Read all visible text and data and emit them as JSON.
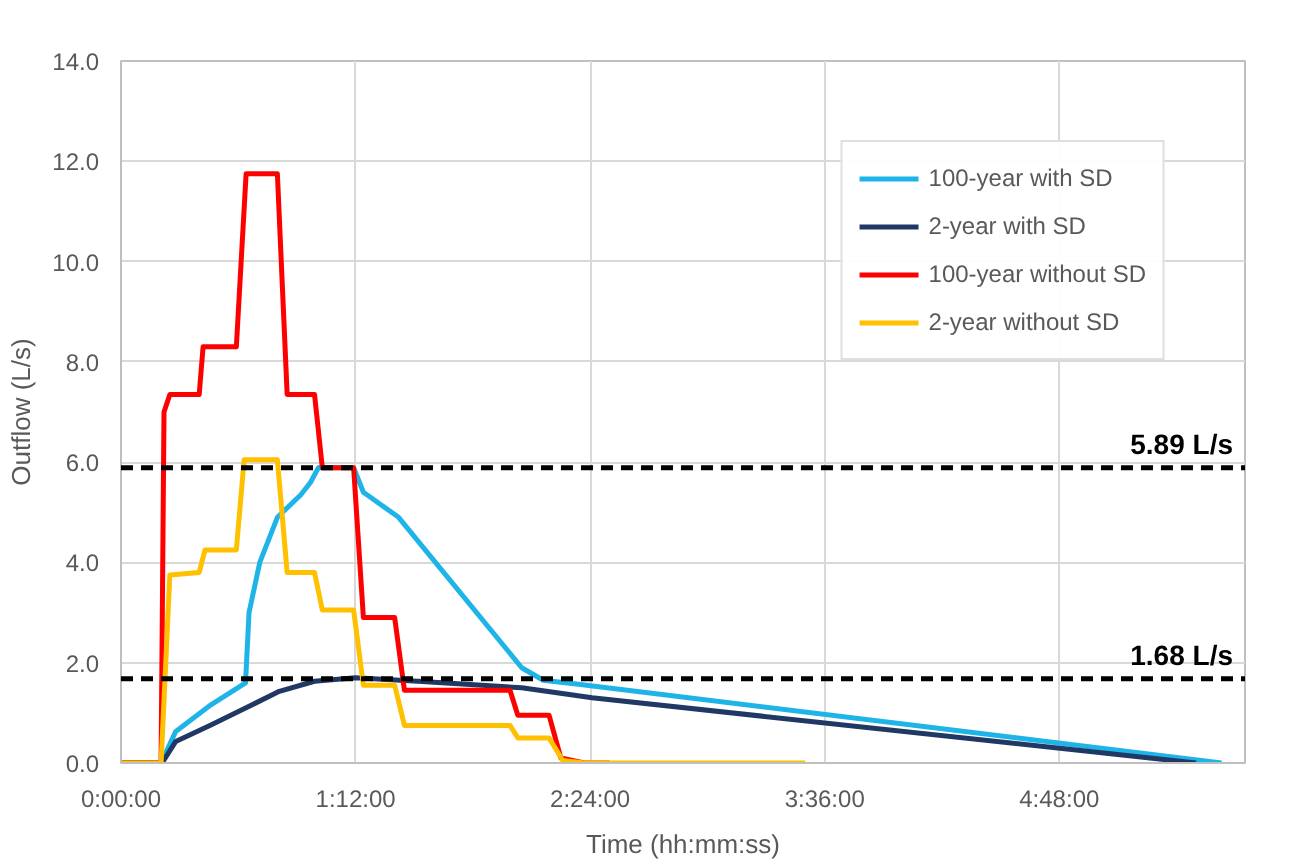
{
  "chart_data": {
    "type": "line",
    "xlabel": "Time (hh:mm:ss)",
    "ylabel": "Outflow (L/s)",
    "xlim": [
      0,
      5.75
    ],
    "xticks": [
      {
        "value": 0,
        "label": "0:00:00"
      },
      {
        "value": 1.2,
        "label": "1:12:00"
      },
      {
        "value": 2.4,
        "label": "2:24:00"
      },
      {
        "value": 3.6,
        "label": "3:36:00"
      },
      {
        "value": 4.8,
        "label": "4:48:00"
      }
    ],
    "ylim": [
      0,
      14
    ],
    "yticks": [
      {
        "value": 0,
        "label": "0.0"
      },
      {
        "value": 2,
        "label": "2.0"
      },
      {
        "value": 4,
        "label": "4.0"
      },
      {
        "value": 6,
        "label": "6.0"
      },
      {
        "value": 8,
        "label": "8.0"
      },
      {
        "value": 10,
        "label": "10.0"
      },
      {
        "value": 12,
        "label": "12.0"
      },
      {
        "value": 14,
        "label": "14.0"
      }
    ],
    "grid": true,
    "legend": "top right",
    "marker": "none",
    "line_style": "solid",
    "ref_lines": [
      {
        "axis": "y",
        "value": 5.89,
        "label": "5.89 L/s",
        "color": "#000000",
        "line_style": "dashed"
      },
      {
        "axis": "y",
        "value": 1.68,
        "label": "1.68 L/s",
        "color": "#000000",
        "line_style": "dashed"
      }
    ],
    "series": [
      {
        "name": "100-year with SD",
        "color": "#1fb4e8",
        "x": [
          0,
          0.205,
          0.28,
          0.46,
          0.637,
          0.655,
          0.71,
          0.8,
          0.92,
          0.97,
          1.01,
          1.19,
          1.24,
          1.42,
          2.05,
          2.16,
          2.34,
          5.63
        ],
        "values": [
          0,
          0,
          0.63,
          1.16,
          1.6,
          3.0,
          4.0,
          4.9,
          5.35,
          5.6,
          5.89,
          5.89,
          5.4,
          4.9,
          1.9,
          1.65,
          1.57,
          0
        ]
      },
      {
        "name": "2-year with SD",
        "color": "#1f3864",
        "x": [
          0,
          0.21,
          0.28,
          0.46,
          0.64,
          0.81,
          0.99,
          1.2,
          1.52,
          2.05,
          2.41,
          5.5
        ],
        "values": [
          0,
          0,
          0.43,
          0.76,
          1.1,
          1.43,
          1.63,
          1.7,
          1.63,
          1.5,
          1.3,
          0
        ]
      },
      {
        "name": "100-year without SD",
        "color": "#ff0000",
        "x": [
          0,
          0.205,
          0.22,
          0.25,
          0.4,
          0.42,
          0.59,
          0.64,
          0.8,
          0.85,
          0.99,
          1.03,
          1.19,
          1.24,
          1.4,
          1.45,
          1.99,
          2.03,
          2.19,
          2.25,
          2.37,
          2.5
        ],
        "values": [
          0,
          0,
          7.0,
          7.35,
          7.35,
          8.3,
          8.3,
          11.75,
          11.75,
          7.35,
          7.35,
          5.89,
          5.89,
          2.9,
          2.9,
          1.45,
          1.45,
          0.95,
          0.95,
          0.1,
          0,
          0
        ]
      },
      {
        "name": "2-year without SD",
        "color": "#ffc000",
        "x": [
          0,
          0.205,
          0.25,
          0.4,
          0.43,
          0.59,
          0.63,
          0.8,
          0.85,
          0.99,
          1.03,
          1.19,
          1.24,
          1.4,
          1.45,
          1.99,
          2.03,
          2.19,
          2.26,
          2.37,
          3.5
        ],
        "values": [
          0,
          0,
          3.75,
          3.8,
          4.25,
          4.25,
          6.05,
          6.05,
          3.8,
          3.8,
          3.05,
          3.05,
          1.55,
          1.55,
          0.75,
          0.75,
          0.5,
          0.5,
          0.05,
          0,
          0
        ]
      }
    ]
  }
}
